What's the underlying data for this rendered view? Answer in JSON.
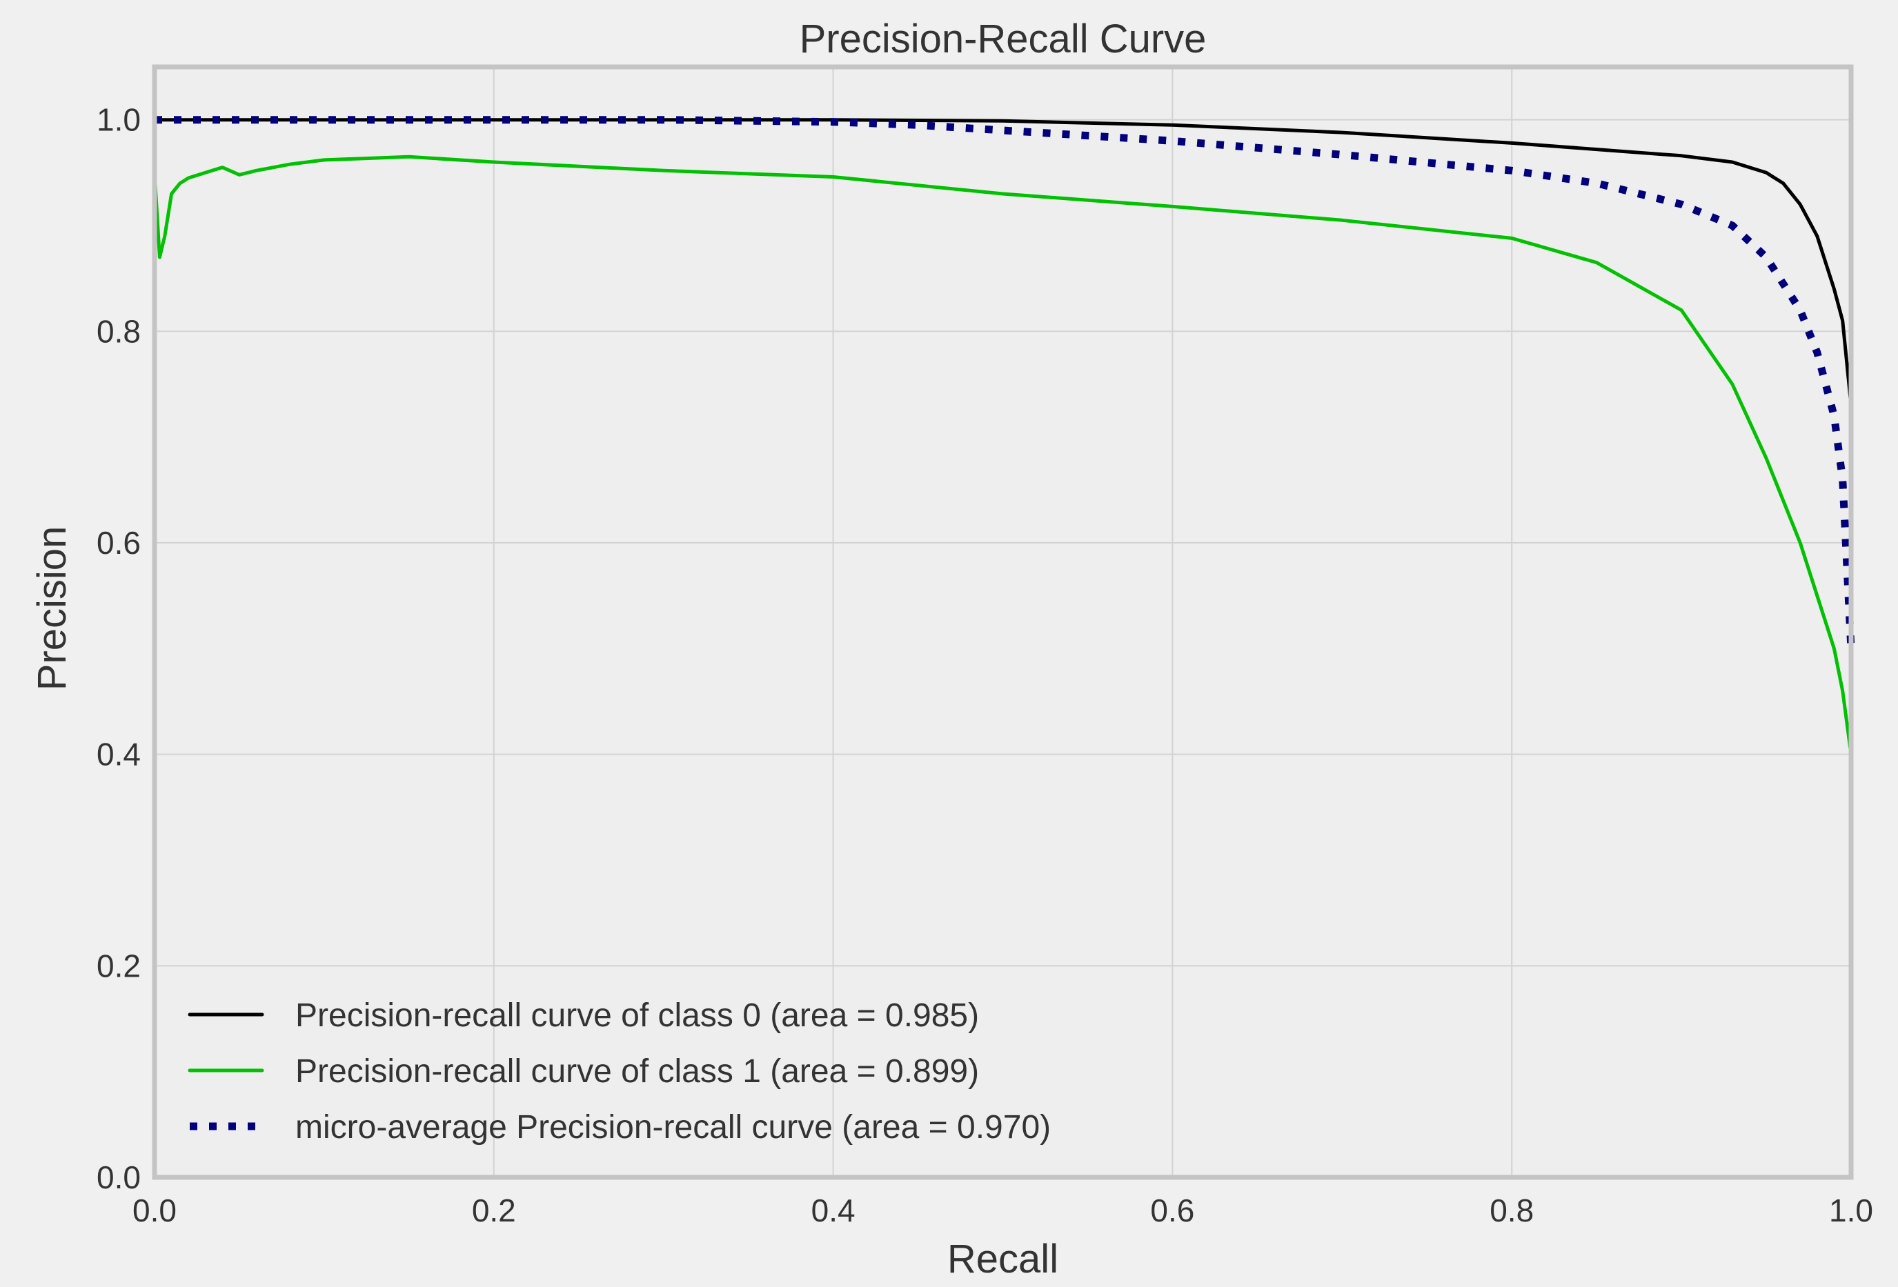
{
  "chart_data": {
    "type": "line",
    "title": "Precision-Recall Curve",
    "xlabel": "Recall",
    "ylabel": "Precision",
    "xlim": [
      0.0,
      1.0
    ],
    "ylim": [
      0.0,
      1.05
    ],
    "xticks": [
      0.0,
      0.2,
      0.4,
      0.6,
      0.8,
      1.0
    ],
    "yticks": [
      0.0,
      0.2,
      0.4,
      0.6,
      0.8,
      1.0
    ],
    "xtick_labels": [
      "0.0",
      "0.2",
      "0.4",
      "0.6",
      "0.8",
      "1.0"
    ],
    "ytick_labels": [
      "0.0",
      "0.2",
      "0.4",
      "0.6",
      "0.8",
      "1.0"
    ],
    "grid": true,
    "legend_position": "lower-left",
    "series": [
      {
        "name": "Precision-recall curve of class 0 (area = 0.985)",
        "color": "#000000",
        "style": "solid",
        "x": [
          0.0,
          0.1,
          0.2,
          0.3,
          0.4,
          0.5,
          0.6,
          0.7,
          0.8,
          0.85,
          0.9,
          0.93,
          0.95,
          0.96,
          0.97,
          0.98,
          0.99,
          0.995,
          1.0
        ],
        "y": [
          1.0,
          1.0,
          1.0,
          1.0,
          1.0,
          0.999,
          0.995,
          0.988,
          0.978,
          0.972,
          0.966,
          0.96,
          0.95,
          0.94,
          0.92,
          0.89,
          0.84,
          0.81,
          0.73
        ]
      },
      {
        "name": "Precision-recall curve of class 1 (area = 0.899)",
        "color": "#00c000",
        "style": "solid",
        "x": [
          0.0,
          0.003,
          0.006,
          0.01,
          0.015,
          0.02,
          0.03,
          0.04,
          0.05,
          0.06,
          0.08,
          0.1,
          0.15,
          0.2,
          0.3,
          0.4,
          0.5,
          0.6,
          0.7,
          0.8,
          0.85,
          0.9,
          0.93,
          0.95,
          0.97,
          0.98,
          0.99,
          0.995,
          1.0
        ],
        "y": [
          0.95,
          0.87,
          0.89,
          0.93,
          0.94,
          0.945,
          0.95,
          0.955,
          0.948,
          0.952,
          0.958,
          0.962,
          0.965,
          0.96,
          0.952,
          0.946,
          0.93,
          0.918,
          0.905,
          0.888,
          0.865,
          0.82,
          0.75,
          0.68,
          0.6,
          0.55,
          0.5,
          0.46,
          0.4
        ]
      },
      {
        "name": "micro-average Precision-recall curve (area = 0.970)",
        "color": "#00007a",
        "style": "dotted",
        "x": [
          0.0,
          0.1,
          0.2,
          0.3,
          0.4,
          0.45,
          0.5,
          0.6,
          0.7,
          0.8,
          0.85,
          0.9,
          0.93,
          0.95,
          0.97,
          0.98,
          0.99,
          0.995,
          1.0
        ],
        "y": [
          1.0,
          1.0,
          1.0,
          1.0,
          0.998,
          0.995,
          0.99,
          0.98,
          0.967,
          0.952,
          0.94,
          0.92,
          0.9,
          0.87,
          0.82,
          0.78,
          0.72,
          0.66,
          0.5
        ]
      }
    ]
  }
}
